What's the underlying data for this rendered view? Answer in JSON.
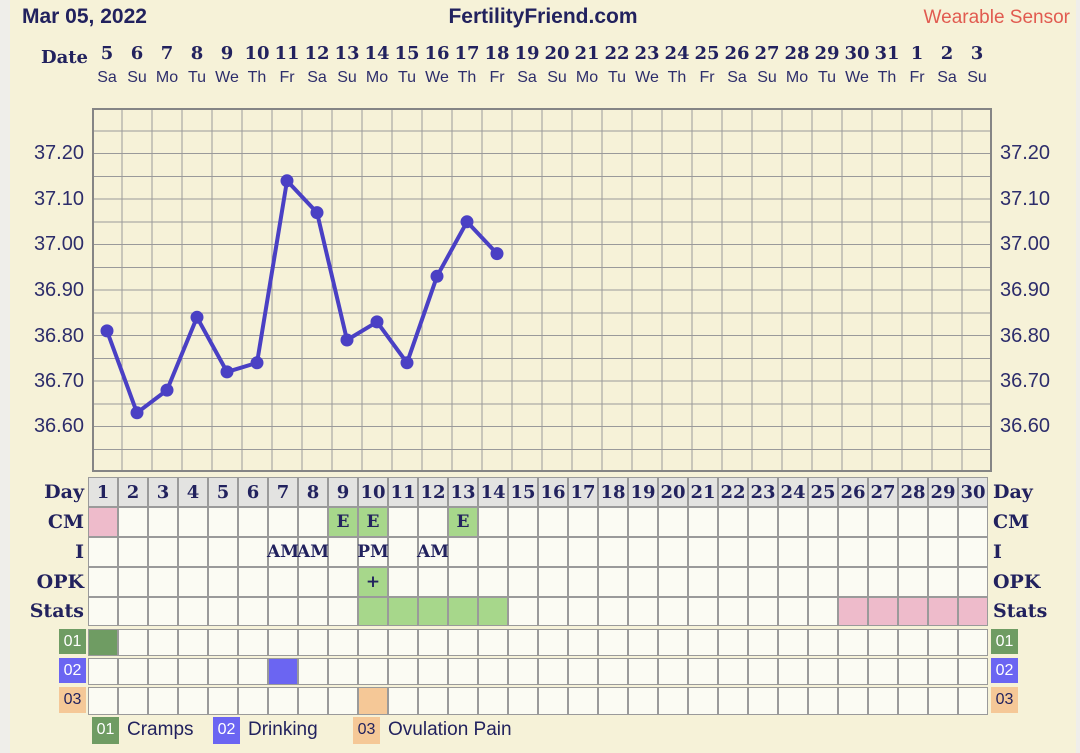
{
  "header": {
    "date": "Mar 05, 2022",
    "title": "FertilityFriend.com",
    "sensor_label": "Wearable Sensor"
  },
  "calendar": {
    "label": "Date",
    "dates": [
      "5",
      "6",
      "7",
      "8",
      "9",
      "10",
      "11",
      "12",
      "13",
      "14",
      "15",
      "16",
      "17",
      "18",
      "19",
      "20",
      "21",
      "22",
      "23",
      "24",
      "25",
      "26",
      "27",
      "28",
      "29",
      "30",
      "31",
      "1",
      "2",
      "3"
    ],
    "weekdays": [
      "Sa",
      "Su",
      "Mo",
      "Tu",
      "We",
      "Th",
      "Fr",
      "Sa",
      "Su",
      "Mo",
      "Tu",
      "We",
      "Th",
      "Fr",
      "Sa",
      "Su",
      "Mo",
      "Tu",
      "We",
      "Th",
      "Fr",
      "Sa",
      "Su",
      "Mo",
      "Tu",
      "We",
      "Th",
      "Fr",
      "Sa",
      "Su"
    ]
  },
  "chart_data": {
    "type": "line",
    "title": "",
    "xlabel": "",
    "ylabel": "",
    "x": [
      1,
      2,
      3,
      4,
      5,
      6,
      7,
      8,
      9,
      10,
      11,
      12,
      13,
      14
    ],
    "values": [
      36.81,
      36.63,
      36.68,
      36.84,
      36.72,
      36.74,
      37.14,
      37.07,
      36.79,
      36.83,
      36.74,
      36.93,
      37.05,
      36.98
    ],
    "ylim": [
      36.5,
      37.3
    ],
    "y_grid_step": 0.05,
    "x_columns": 30,
    "grid": true,
    "legend_position": "none",
    "ytick_labels": [
      "37.20",
      "37.10",
      "37.00",
      "36.90",
      "36.80",
      "36.70",
      "36.60"
    ],
    "ytick_values": [
      37.2,
      37.1,
      37.0,
      36.9,
      36.8,
      36.7,
      36.6
    ]
  },
  "table": {
    "rows": [
      {
        "key": "day",
        "label": "Day",
        "style": "header",
        "cells": [
          "1",
          "2",
          "3",
          "4",
          "5",
          "6",
          "7",
          "8",
          "9",
          "10",
          "11",
          "12",
          "13",
          "14",
          "15",
          "16",
          "17",
          "18",
          "19",
          "20",
          "21",
          "22",
          "23",
          "24",
          "25",
          "26",
          "27",
          "28",
          "29",
          "30"
        ]
      },
      {
        "key": "cm",
        "label": "CM",
        "marks": [
          {
            "day": 1,
            "bg": "pink"
          },
          {
            "day": 9,
            "bg": "green",
            "text": "E"
          },
          {
            "day": 10,
            "bg": "green",
            "text": "E"
          },
          {
            "day": 13,
            "bg": "green",
            "text": "E"
          }
        ]
      },
      {
        "key": "i",
        "label": "I",
        "marks": [
          {
            "day": 7,
            "text": "AM"
          },
          {
            "day": 8,
            "text": "AM"
          },
          {
            "day": 10,
            "text": "PM"
          },
          {
            "day": 12,
            "text": "AM"
          }
        ]
      },
      {
        "key": "opk",
        "label": "OPK",
        "marks": [
          {
            "day": 10,
            "bg": "green",
            "text": "+"
          }
        ]
      },
      {
        "key": "stats",
        "label": "Stats",
        "marks": [
          {
            "day": 10,
            "bg": "green"
          },
          {
            "day": 11,
            "bg": "green"
          },
          {
            "day": 12,
            "bg": "green"
          },
          {
            "day": 13,
            "bg": "green"
          },
          {
            "day": 14,
            "bg": "green"
          },
          {
            "day": 26,
            "bg": "pink"
          },
          {
            "day": 27,
            "bg": "pink"
          },
          {
            "day": 28,
            "bg": "pink"
          },
          {
            "day": 29,
            "bg": "pink"
          },
          {
            "day": 30,
            "bg": "pink"
          }
        ]
      },
      {
        "key": "symptom-01",
        "label": "01",
        "badge": {
          "bg": "dgreen",
          "fg": "white"
        },
        "marks": [
          {
            "day": 1,
            "bg": "dgreen"
          }
        ]
      },
      {
        "key": "symptom-02",
        "label": "02",
        "badge": {
          "bg": "blue",
          "fg": "white"
        },
        "marks": [
          {
            "day": 7,
            "bg": "blue"
          }
        ]
      },
      {
        "key": "symptom-03",
        "label": "03",
        "badge": {
          "bg": "orange",
          "fg": "navy"
        },
        "marks": [
          {
            "day": 10,
            "bg": "orange"
          }
        ]
      }
    ]
  },
  "legend": [
    {
      "id": "01",
      "label": "Cramps",
      "badge_bg": "dgreen",
      "badge_fg": "white"
    },
    {
      "id": "02",
      "label": "Drinking",
      "badge_bg": "blue",
      "badge_fg": "white"
    },
    {
      "id": "03",
      "label": "Ovulation Pain",
      "badge_bg": "orange",
      "badge_fg": "navy"
    }
  ],
  "colors": {
    "navy": "#22225e",
    "sensor_red": "#e15b50",
    "panel_bg": "#f6f2d8",
    "page_bg": "#efeeea",
    "grid": "#9a9a9a",
    "chart_border": "#858585",
    "line": "#4a40c4",
    "cell_bg": "#fbfbf3",
    "day_header_bg": "#e3e3e1",
    "green": "#a7d78b",
    "pink": "#eebbcb",
    "dgreen": "#6f9c63",
    "blue": "#6b65f2",
    "orange": "#f5c897",
    "white": "#ffffff"
  }
}
